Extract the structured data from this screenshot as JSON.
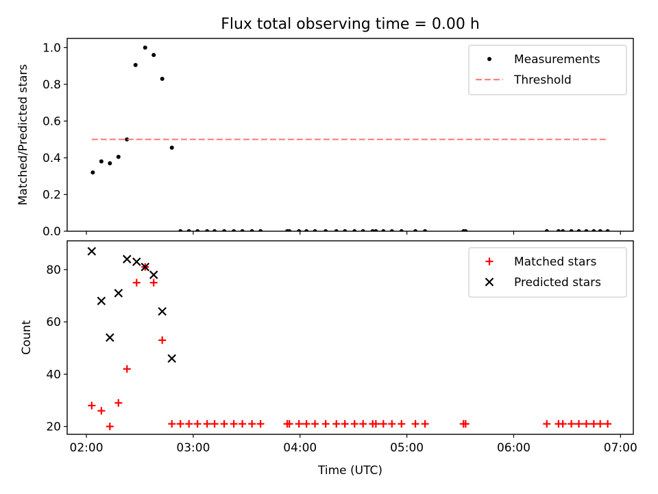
{
  "figure_title": "Flux total observing time = 0.00 h",
  "chart_data": [
    {
      "type": "scatter",
      "ylabel": "Matched/Predicted stars",
      "xlim": [
        2.0,
        7.0
      ],
      "ylim": [
        0,
        1.05
      ],
      "yticks": [
        0.0,
        0.2,
        0.4,
        0.6,
        0.8,
        1.0
      ],
      "ytick_labels": [
        "0.0",
        "0.2",
        "0.4",
        "0.6",
        "0.8",
        "1.0"
      ],
      "legend_position": "top-right",
      "series": [
        {
          "name": "Measurements",
          "marker": "dot",
          "color": "#000000",
          "points": [
            [
              2.06,
              0.32
            ],
            [
              2.14,
              0.38
            ],
            [
              2.22,
              0.37
            ],
            [
              2.3,
              0.405
            ],
            [
              2.38,
              0.5
            ],
            [
              2.46,
              0.905
            ],
            [
              2.55,
              1.0
            ],
            [
              2.63,
              0.96
            ],
            [
              2.71,
              0.83
            ],
            [
              2.8,
              0.455
            ],
            [
              2.88,
              0.0
            ],
            [
              2.96,
              0.0
            ],
            [
              3.04,
              0.0
            ],
            [
              3.13,
              0.0
            ],
            [
              3.2,
              0.0
            ],
            [
              3.29,
              0.0
            ],
            [
              3.38,
              0.0
            ],
            [
              3.46,
              0.0
            ],
            [
              3.55,
              0.0
            ],
            [
              3.63,
              0.0
            ],
            [
              3.88,
              0.0
            ],
            [
              3.9,
              0.0
            ],
            [
              3.99,
              0.0
            ],
            [
              4.06,
              0.0
            ],
            [
              4.14,
              0.0
            ],
            [
              4.24,
              0.0
            ],
            [
              4.34,
              0.0
            ],
            [
              4.42,
              0.0
            ],
            [
              4.51,
              0.0
            ],
            [
              4.59,
              0.0
            ],
            [
              4.68,
              0.0
            ],
            [
              4.71,
              0.0
            ],
            [
              4.78,
              0.0
            ],
            [
              4.86,
              0.0
            ],
            [
              4.95,
              0.0
            ],
            [
              5.08,
              0.0
            ],
            [
              5.17,
              0.0
            ],
            [
              5.53,
              0.0
            ],
            [
              5.55,
              0.0
            ],
            [
              6.31,
              0.0
            ],
            [
              6.42,
              0.0
            ],
            [
              6.46,
              0.0
            ],
            [
              6.54,
              0.0
            ],
            [
              6.61,
              0.0
            ],
            [
              6.68,
              0.0
            ],
            [
              6.75,
              0.0
            ],
            [
              6.81,
              0.0
            ],
            [
              6.88,
              0.0
            ]
          ]
        },
        {
          "name": "Threshold",
          "type": "line",
          "style": "dashed",
          "color": "#ff7f7f",
          "points": [
            [
              2.05,
              0.5
            ],
            [
              6.88,
              0.5
            ]
          ]
        }
      ]
    },
    {
      "type": "scatter",
      "xlabel": "Time (UTC)",
      "ylabel": "Count",
      "xlim": [
        1.82,
        7.12
      ],
      "ylim": [
        17,
        91
      ],
      "xticks": [
        2,
        3,
        4,
        5,
        6,
        7
      ],
      "xtick_labels": [
        "02:00",
        "03:00",
        "04:00",
        "05:00",
        "06:00",
        "07:00"
      ],
      "yticks": [
        20,
        40,
        60,
        80
      ],
      "ytick_labels": [
        "20",
        "40",
        "60",
        "80"
      ],
      "legend_position": "top-right",
      "series": [
        {
          "name": "Matched stars",
          "marker": "plus",
          "color": "#ff0000",
          "points": [
            [
              2.05,
              28
            ],
            [
              2.14,
              26
            ],
            [
              2.22,
              20
            ],
            [
              2.3,
              29
            ],
            [
              2.38,
              42
            ],
            [
              2.47,
              75
            ],
            [
              2.55,
              81
            ],
            [
              2.63,
              75
            ],
            [
              2.71,
              53
            ],
            [
              2.8,
              21
            ],
            [
              2.88,
              21
            ],
            [
              2.96,
              21
            ],
            [
              3.04,
              21
            ],
            [
              3.13,
              21
            ],
            [
              3.2,
              21
            ],
            [
              3.29,
              21
            ],
            [
              3.38,
              21
            ],
            [
              3.46,
              21
            ],
            [
              3.55,
              21
            ],
            [
              3.63,
              21
            ],
            [
              3.88,
              21
            ],
            [
              3.9,
              21
            ],
            [
              3.99,
              21
            ],
            [
              4.06,
              21
            ],
            [
              4.14,
              21
            ],
            [
              4.24,
              21
            ],
            [
              4.34,
              21
            ],
            [
              4.42,
              21
            ],
            [
              4.51,
              21
            ],
            [
              4.59,
              21
            ],
            [
              4.68,
              21
            ],
            [
              4.71,
              21
            ],
            [
              4.78,
              21
            ],
            [
              4.86,
              21
            ],
            [
              4.95,
              21
            ],
            [
              5.08,
              21
            ],
            [
              5.17,
              21
            ],
            [
              5.53,
              21
            ],
            [
              5.55,
              21
            ],
            [
              6.31,
              21
            ],
            [
              6.42,
              21
            ],
            [
              6.46,
              21
            ],
            [
              6.54,
              21
            ],
            [
              6.61,
              21
            ],
            [
              6.68,
              21
            ],
            [
              6.75,
              21
            ],
            [
              6.81,
              21
            ],
            [
              6.88,
              21
            ]
          ]
        },
        {
          "name": "Predicted stars",
          "marker": "x",
          "color": "#000000",
          "points": [
            [
              2.05,
              87
            ],
            [
              2.14,
              68
            ],
            [
              2.22,
              54
            ],
            [
              2.3,
              71
            ],
            [
              2.38,
              84
            ],
            [
              2.47,
              83
            ],
            [
              2.55,
              81
            ],
            [
              2.63,
              78
            ],
            [
              2.71,
              64
            ],
            [
              2.8,
              46
            ]
          ]
        }
      ]
    }
  ]
}
